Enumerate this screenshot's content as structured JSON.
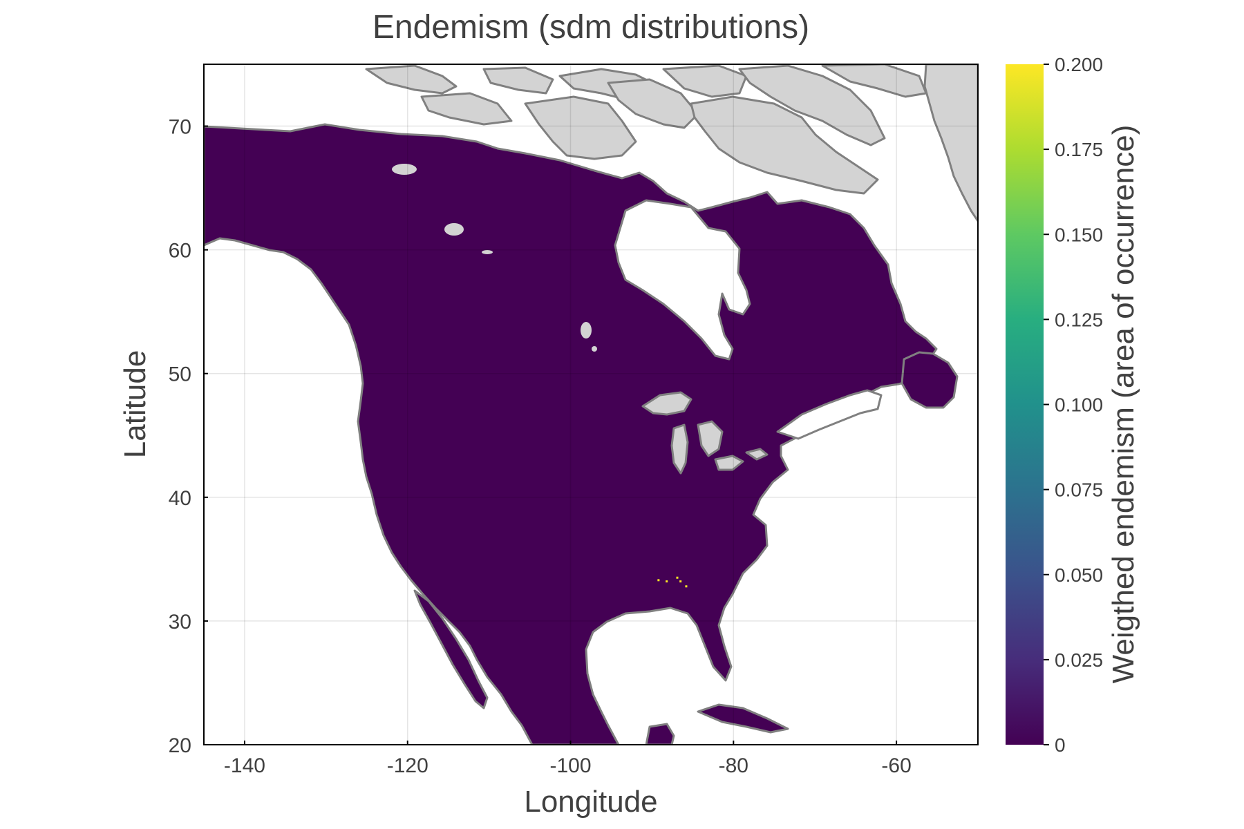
{
  "title": "Endemism (sdm distributions)",
  "map": {
    "xlabel": "Longitude",
    "ylabel": "Latitude",
    "xlim": [
      -145,
      -50
    ],
    "ylim": [
      20,
      75
    ],
    "xticks": [
      -140,
      -120,
      -100,
      -80,
      -60
    ],
    "yticks": [
      20,
      30,
      40,
      50,
      60,
      70
    ],
    "xtick_labels": [
      "-140",
      "-120",
      "-100",
      "-80",
      "-60"
    ],
    "ytick_labels": [
      "20",
      "30",
      "40",
      "50",
      "60",
      "70"
    ],
    "grid": true,
    "land_color": "#440154",
    "nodata_color": "#d3d3d3",
    "coast_color": "#808080",
    "water_color": "#ffffff"
  },
  "chart_data": {
    "type": "heatmap",
    "title": "Endemism (sdm distributions)",
    "xlabel": "Longitude",
    "ylabel": "Latitude",
    "xlim": [
      -145,
      -50
    ],
    "ylim": [
      20,
      75
    ],
    "colorscale": "viridis",
    "colorbar": {
      "label": "Weigthed endemism (area of occurrence)",
      "range": [
        0,
        0.2
      ],
      "ticks": [
        0,
        0.025,
        0.05,
        0.075,
        0.1,
        0.125,
        0.15,
        0.175,
        0.2
      ],
      "tick_labels": [
        "0",
        "0.025",
        "0.050",
        "0.075",
        "0.100",
        "0.125",
        "0.150",
        "0.175",
        "0.200"
      ]
    },
    "baseline_value": 0,
    "highlights": [
      {
        "lon": -89.2,
        "lat": 33.3,
        "value": 0.2
      },
      {
        "lon": -88.2,
        "lat": 33.2,
        "value": 0.2
      },
      {
        "lon": -86.9,
        "lat": 33.5,
        "value": 0.2
      },
      {
        "lon": -86.5,
        "lat": 33.2,
        "value": 0.2
      },
      {
        "lon": -85.8,
        "lat": 32.8,
        "value": 0.2
      }
    ]
  }
}
